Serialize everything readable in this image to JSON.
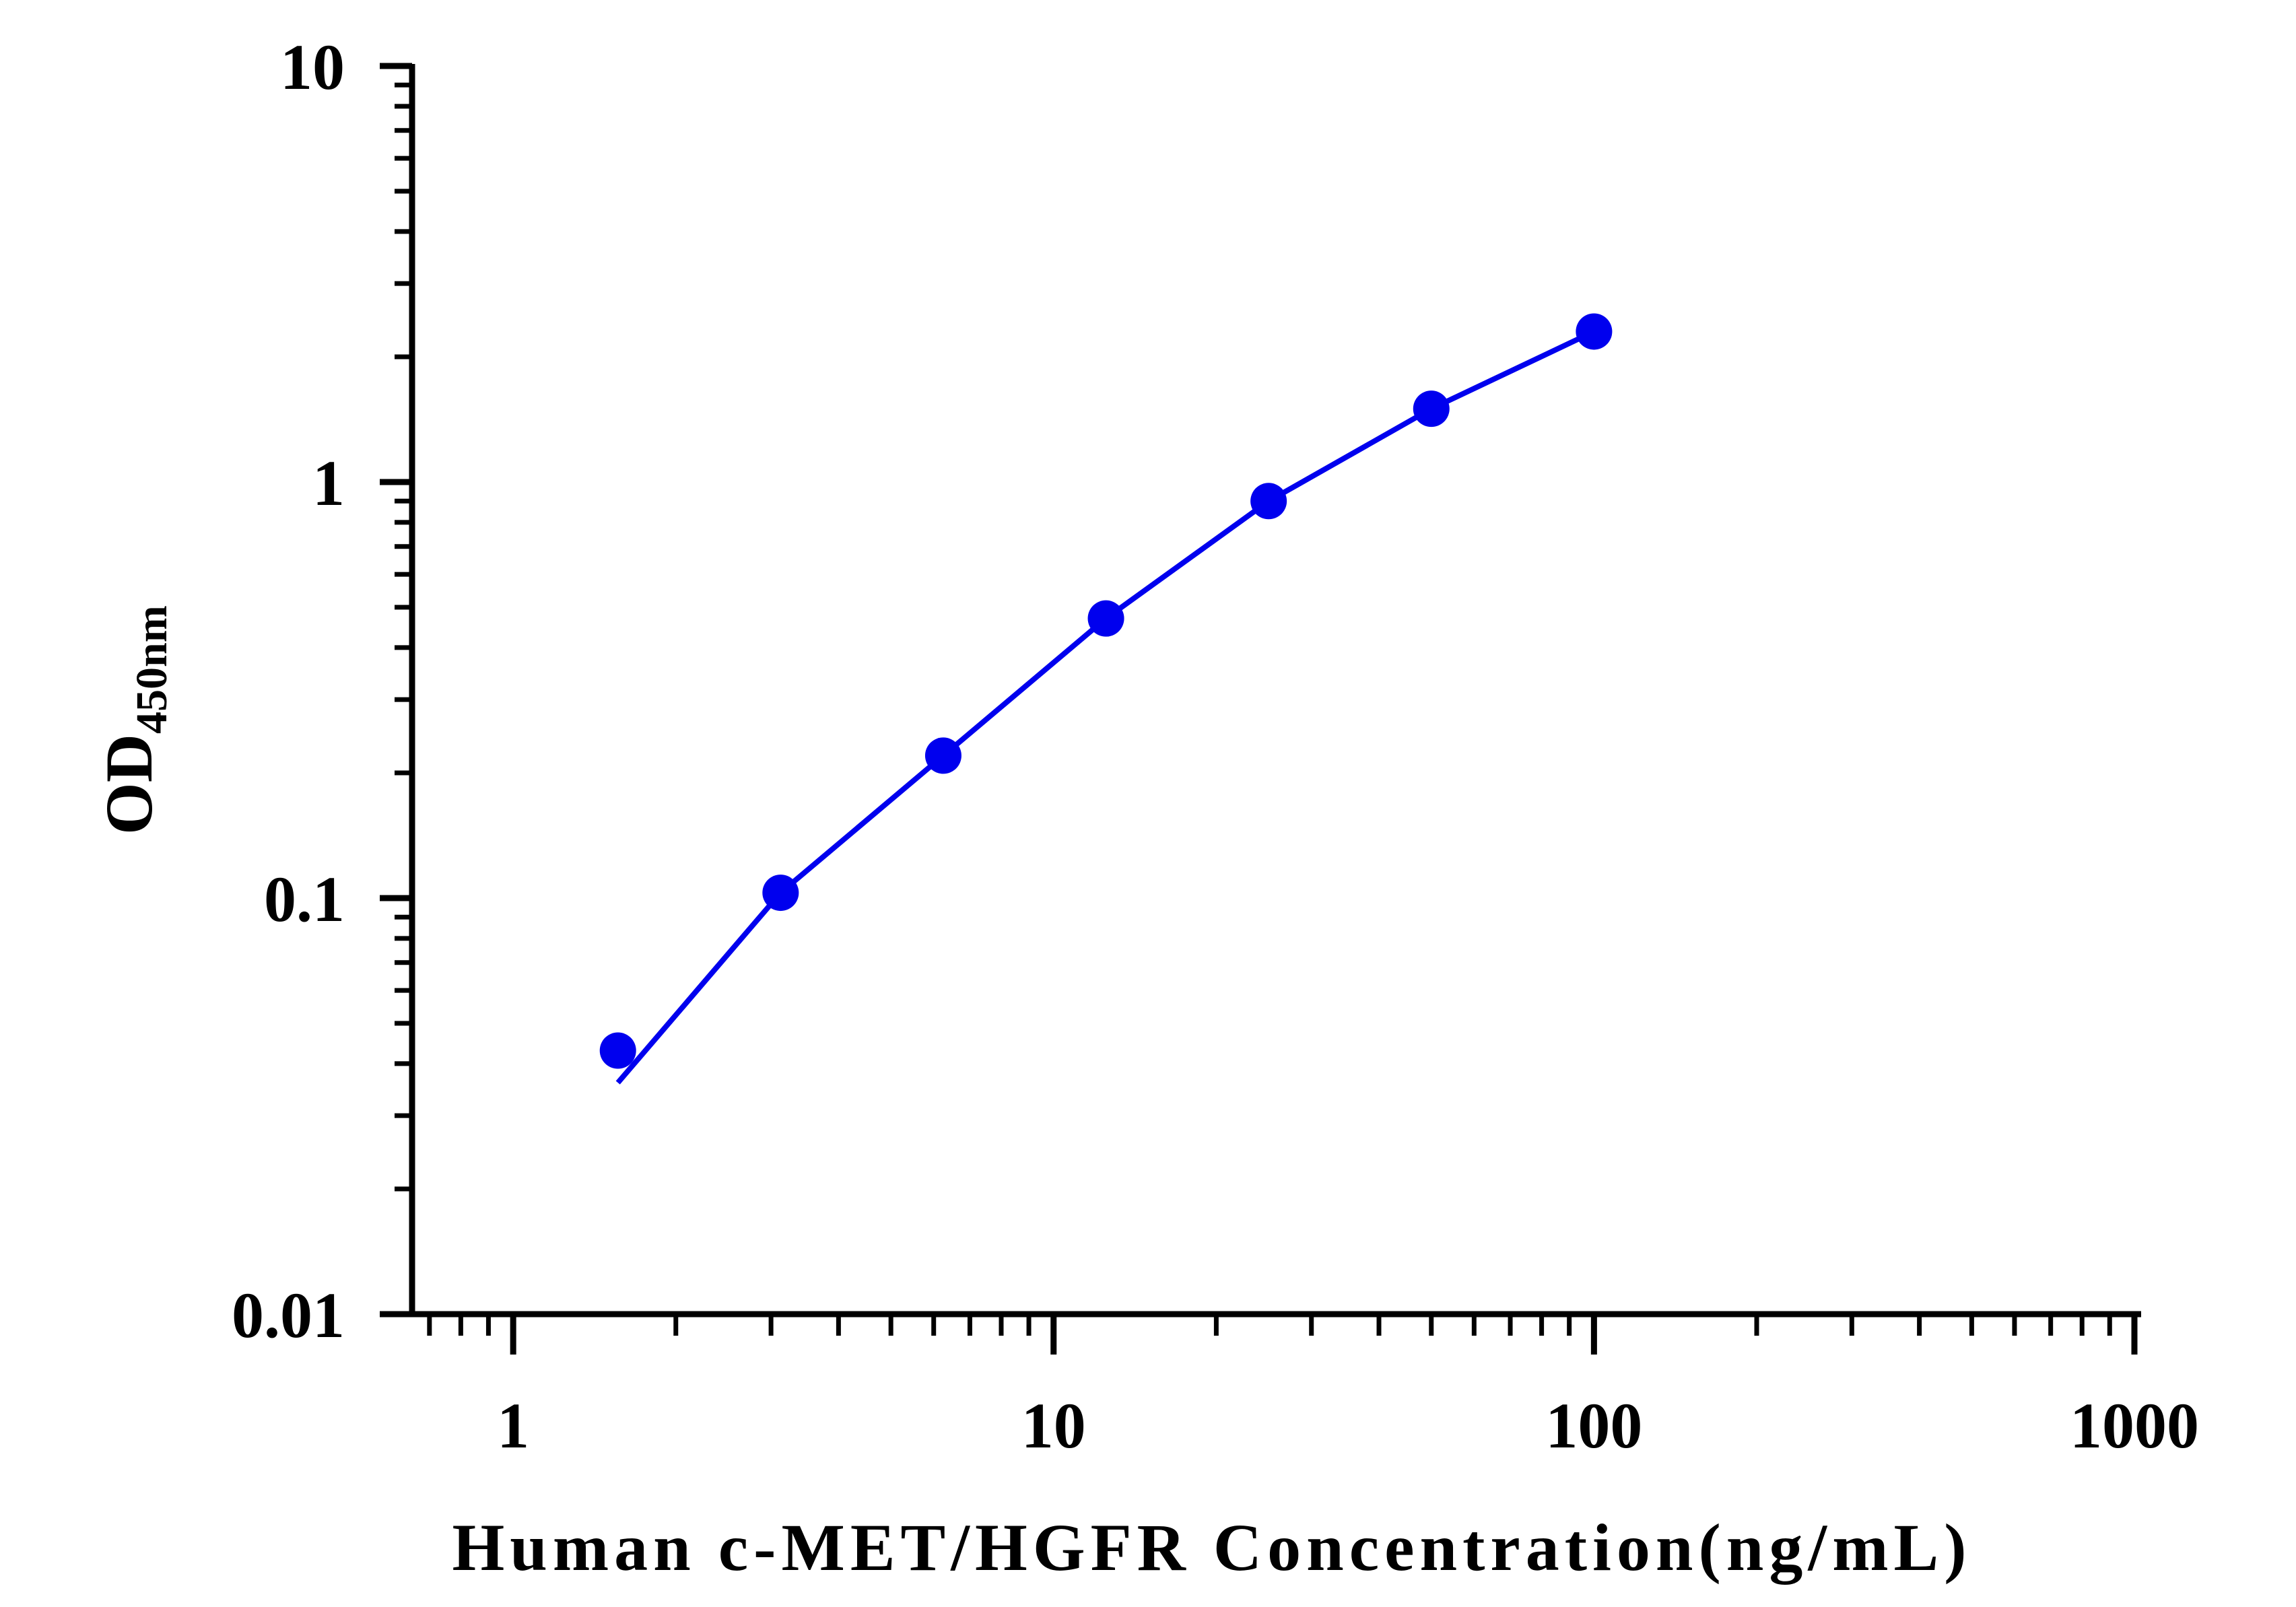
{
  "chart_data": {
    "type": "line",
    "xlabel": "Human c-MET/HGFR Concentration(ng/mL)",
    "ylabel_main": "OD",
    "ylabel_subscript": "450nm",
    "x_scale": "log",
    "y_scale": "log",
    "xlim": [
      0.65,
      1000
    ],
    "ylim": [
      0.01,
      10
    ],
    "x_tick_labels": [
      "1",
      "10",
      "100",
      "1000"
    ],
    "y_tick_labels": [
      "0.01",
      "0.1",
      "1",
      "10"
    ],
    "grid": false,
    "legend": "none",
    "series": [
      {
        "color": "#0000ee",
        "marker": "circle",
        "points": [
          {
            "x": 1.5625,
            "y": 0.043
          },
          {
            "x": 3.125,
            "y": 0.103
          },
          {
            "x": 6.25,
            "y": 0.22
          },
          {
            "x": 12.5,
            "y": 0.47
          },
          {
            "x": 25,
            "y": 0.9
          },
          {
            "x": 50,
            "y": 1.5
          },
          {
            "x": 100,
            "y": 2.3
          }
        ],
        "fit_line": [
          {
            "x": 1.5625,
            "y": 0.036
          },
          {
            "x": 3.125,
            "y": 0.103
          },
          {
            "x": 6.25,
            "y": 0.22
          },
          {
            "x": 12.5,
            "y": 0.47
          },
          {
            "x": 25,
            "y": 0.9
          },
          {
            "x": 50,
            "y": 1.5
          },
          {
            "x": 100,
            "y": 2.3
          }
        ]
      }
    ]
  }
}
